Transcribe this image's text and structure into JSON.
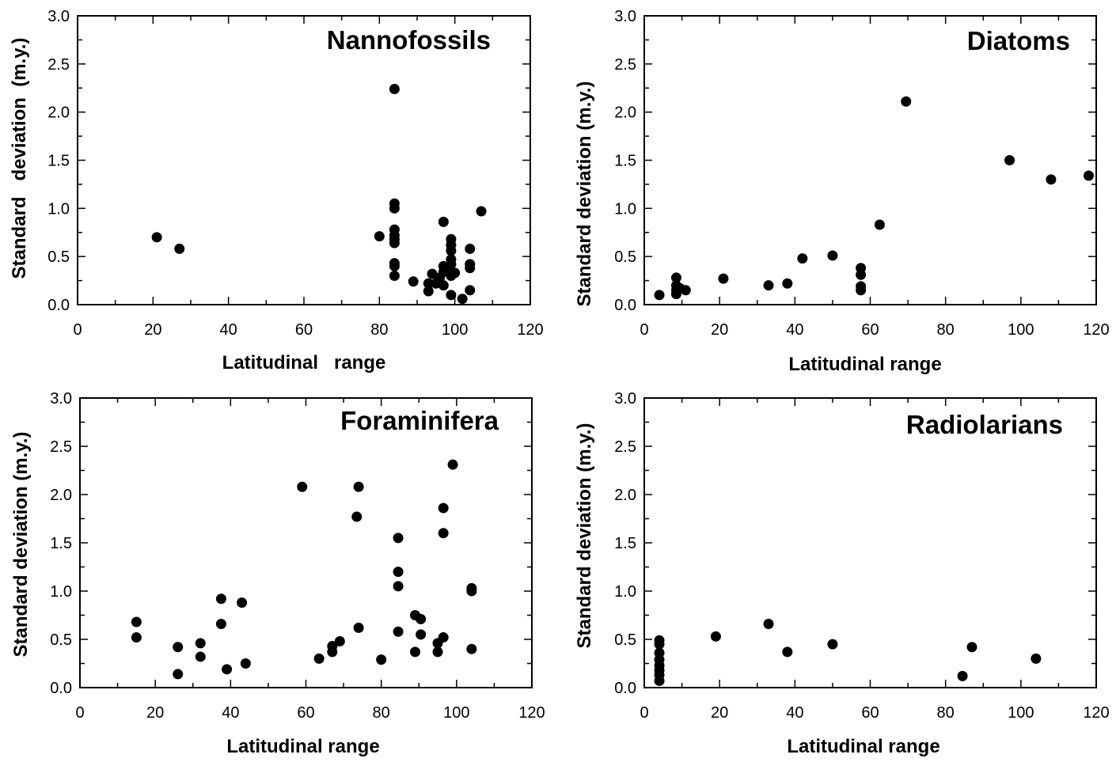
{
  "chart_data": [
    {
      "type": "scatter",
      "title": "Nannofossils",
      "xlabel": "Latitudinal   range",
      "ylabel": "Standard   deviation  (m.y.)",
      "xlim": [
        0,
        120
      ],
      "ylim": [
        0,
        3
      ],
      "x_ticks": [
        "0",
        "20",
        "40",
        "60",
        "80",
        "100",
        "120"
      ],
      "y_ticks": [
        "0.0",
        "0.5",
        "1.0",
        "1.5",
        "2.0",
        "2.5",
        "3.0"
      ],
      "grid": false,
      "marker_color": "#000000",
      "points": [
        [
          21,
          0.7
        ],
        [
          27,
          0.58
        ],
        [
          84,
          2.24
        ],
        [
          84,
          1.05
        ],
        [
          84,
          1.0
        ],
        [
          84,
          0.78
        ],
        [
          84,
          0.72
        ],
        [
          84,
          0.68
        ],
        [
          84,
          0.64
        ],
        [
          84,
          0.43
        ],
        [
          84,
          0.4
        ],
        [
          84,
          0.3
        ],
        [
          80,
          0.71
        ],
        [
          89,
          0.24
        ],
        [
          93,
          0.22
        ],
        [
          93,
          0.14
        ],
        [
          94,
          0.32
        ],
        [
          95,
          0.22
        ],
        [
          96,
          0.28
        ],
        [
          97,
          0.86
        ],
        [
          97,
          0.4
        ],
        [
          97,
          0.34
        ],
        [
          97,
          0.2
        ],
        [
          98,
          0.38
        ],
        [
          99,
          0.68
        ],
        [
          99,
          0.62
        ],
        [
          99,
          0.56
        ],
        [
          99,
          0.47
        ],
        [
          99,
          0.42
        ],
        [
          99,
          0.35
        ],
        [
          99,
          0.3
        ],
        [
          99,
          0.1
        ],
        [
          100,
          0.33
        ],
        [
          102,
          0.06
        ],
        [
          104,
          0.58
        ],
        [
          104,
          0.42
        ],
        [
          104,
          0.38
        ],
        [
          104,
          0.15
        ],
        [
          107,
          0.97
        ]
      ]
    },
    {
      "type": "scatter",
      "title": "Diatoms",
      "xlabel": "Latitudinal range",
      "ylabel": "Standard deviation (m.y.)",
      "xlim": [
        0,
        120
      ],
      "ylim": [
        0,
        3
      ],
      "x_ticks": [
        "0",
        "20",
        "40",
        "60",
        "80",
        "100",
        "120"
      ],
      "y_ticks": [
        "0.0",
        "0.5",
        "1.0",
        "1.5",
        "2.0",
        "2.5",
        "3.0"
      ],
      "grid": false,
      "marker_color": "#000000",
      "points": [
        [
          4,
          0.1
        ],
        [
          8.5,
          0.28
        ],
        [
          8.5,
          0.2
        ],
        [
          8.5,
          0.15
        ],
        [
          8.5,
          0.11
        ],
        [
          9.5,
          0.17
        ],
        [
          11,
          0.15
        ],
        [
          21,
          0.27
        ],
        [
          33,
          0.2
        ],
        [
          38,
          0.22
        ],
        [
          42,
          0.48
        ],
        [
          50,
          0.51
        ],
        [
          57.5,
          0.38
        ],
        [
          57.5,
          0.31
        ],
        [
          57.5,
          0.19
        ],
        [
          57.5,
          0.15
        ],
        [
          62.5,
          0.83
        ],
        [
          69.5,
          2.11
        ],
        [
          97,
          1.5
        ],
        [
          108,
          1.3
        ],
        [
          118,
          1.34
        ]
      ]
    },
    {
      "type": "scatter",
      "title": "Foraminifera",
      "xlabel": "Latitudinal range",
      "ylabel": "Standard deviation (m.y.)",
      "xlim": [
        0,
        120
      ],
      "ylim": [
        0,
        3
      ],
      "x_ticks": [
        "0",
        "20",
        "40",
        "60",
        "80",
        "100",
        "120"
      ],
      "y_ticks": [
        "0.0",
        "0.5",
        "1.0",
        "1.5",
        "2.0",
        "2.5",
        "3.0"
      ],
      "grid": false,
      "marker_color": "#000000",
      "points": [
        [
          15,
          0.68
        ],
        [
          15,
          0.52
        ],
        [
          26,
          0.42
        ],
        [
          26,
          0.14
        ],
        [
          32,
          0.46
        ],
        [
          32,
          0.32
        ],
        [
          37.5,
          0.92
        ],
        [
          37.5,
          0.66
        ],
        [
          39,
          0.19
        ],
        [
          43,
          0.88
        ],
        [
          44,
          0.25
        ],
        [
          59,
          2.08
        ],
        [
          63.5,
          0.3
        ],
        [
          67,
          0.43
        ],
        [
          67,
          0.37
        ],
        [
          69,
          0.48
        ],
        [
          73.5,
          1.77
        ],
        [
          74,
          2.08
        ],
        [
          74,
          0.62
        ],
        [
          80,
          0.29
        ],
        [
          84.5,
          1.55
        ],
        [
          84.5,
          1.2
        ],
        [
          84.5,
          1.05
        ],
        [
          84.5,
          0.58
        ],
        [
          89,
          0.75
        ],
        [
          89,
          0.37
        ],
        [
          90.5,
          0.71
        ],
        [
          90.5,
          0.55
        ],
        [
          95,
          0.46
        ],
        [
          95,
          0.37
        ],
        [
          96.5,
          0.52
        ],
        [
          96.5,
          1.86
        ],
        [
          96.5,
          1.6
        ],
        [
          99,
          2.31
        ],
        [
          104,
          1.03
        ],
        [
          104,
          1.0
        ],
        [
          104,
          0.4
        ]
      ]
    },
    {
      "type": "scatter",
      "title": "Radiolarians",
      "xlabel": "Latitudinal range",
      "ylabel": "Standard deviation (m.y.)",
      "xlim": [
        0,
        120
      ],
      "ylim": [
        0,
        3
      ],
      "x_ticks": [
        "0",
        "20",
        "40",
        "60",
        "80",
        "100",
        "120"
      ],
      "y_ticks": [
        "0.0",
        "0.5",
        "1.0",
        "1.5",
        "2.0",
        "2.5",
        "3.0"
      ],
      "grid": false,
      "marker_color": "#000000",
      "points": [
        [
          4,
          0.49
        ],
        [
          4,
          0.45
        ],
        [
          4,
          0.36
        ],
        [
          4,
          0.29
        ],
        [
          4,
          0.23
        ],
        [
          4,
          0.18
        ],
        [
          4,
          0.13
        ],
        [
          4,
          0.07
        ],
        [
          19,
          0.53
        ],
        [
          33,
          0.66
        ],
        [
          38,
          0.37
        ],
        [
          50,
          0.45
        ],
        [
          84.5,
          0.12
        ],
        [
          87,
          0.42
        ],
        [
          104,
          0.3
        ]
      ]
    }
  ]
}
